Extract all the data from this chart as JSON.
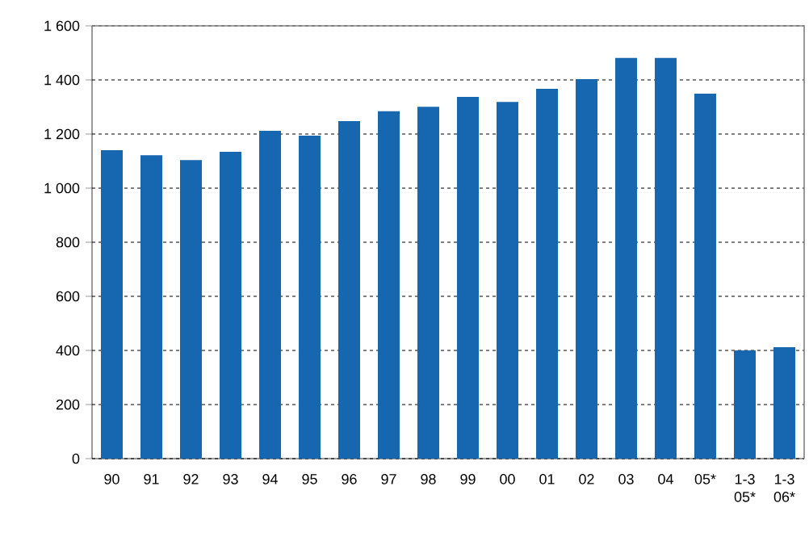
{
  "chart_data": {
    "type": "bar",
    "categories": [
      "90",
      "91",
      "92",
      "93",
      "94",
      "95",
      "96",
      "97",
      "98",
      "99",
      "00",
      "01",
      "02",
      "03",
      "04",
      "05*",
      "1-3 05*",
      "1-3 06*"
    ],
    "values": [
      1140,
      1122,
      1104,
      1134,
      1212,
      1194,
      1248,
      1284,
      1301,
      1337,
      1319,
      1367,
      1403,
      1481,
      1481,
      1349,
      400,
      412
    ],
    "color": "#1767b0",
    "ylim": [
      0,
      1600
    ],
    "yticks": [
      0,
      200,
      400,
      600,
      800,
      {
        "value": 1000,
        "label": "1 000"
      },
      {
        "value": 1200,
        "label": "1 200"
      },
      {
        "value": 1400,
        "label": "1 400"
      },
      {
        "value": 1600,
        "label": "1 600"
      }
    ],
    "grid": "y"
  }
}
